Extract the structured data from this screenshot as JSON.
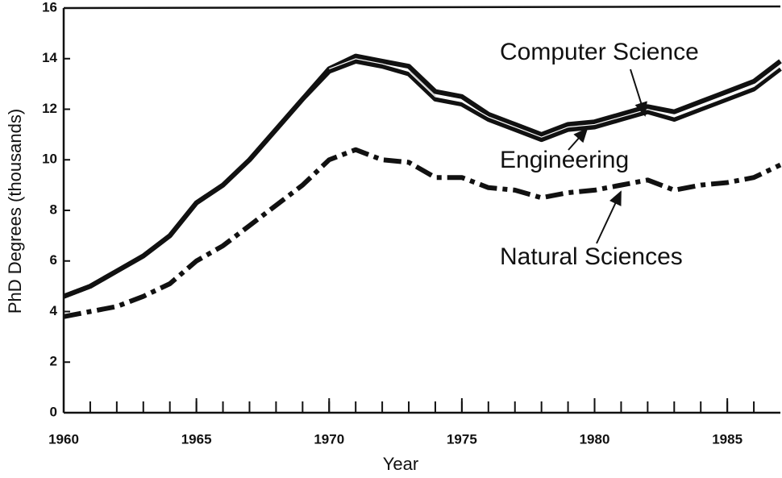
{
  "chart_data": {
    "type": "line",
    "x_label": "Year",
    "y_label": "PhD  Degrees (thousands)",
    "x": [
      1960,
      1961,
      1962,
      1963,
      1964,
      1965,
      1966,
      1967,
      1968,
      1969,
      1970,
      1971,
      1972,
      1973,
      1974,
      1975,
      1976,
      1977,
      1978,
      1979,
      1980,
      1981,
      1982,
      1983,
      1984,
      1985,
      1986,
      1987
    ],
    "series": [
      {
        "name": "Computer Science",
        "color": "#111111",
        "style": "solid",
        "values": [
          4.6,
          5.0,
          5.6,
          6.2,
          7.0,
          8.3,
          9.0,
          10.0,
          11.2,
          12.4,
          13.6,
          14.1,
          13.9,
          13.7,
          12.7,
          12.5,
          11.8,
          11.4,
          11.0,
          11.4,
          11.5,
          11.8,
          12.1,
          11.9,
          12.3,
          12.7,
          13.1,
          13.9
        ]
      },
      {
        "name": "Engineering",
        "color": "#111111",
        "style": "solid",
        "values": [
          4.6,
          5.0,
          5.6,
          6.2,
          7.0,
          8.3,
          9.0,
          10.0,
          11.2,
          12.4,
          13.5,
          13.9,
          13.7,
          13.4,
          12.4,
          12.2,
          11.6,
          11.2,
          10.8,
          11.2,
          11.3,
          11.6,
          11.9,
          11.6,
          12.0,
          12.4,
          12.8,
          13.6
        ]
      },
      {
        "name": "Natural Sciences",
        "color": "#111111",
        "style": "dashdot",
        "values": [
          3.8,
          4.0,
          4.2,
          4.6,
          5.1,
          6.0,
          6.6,
          7.4,
          8.2,
          9.0,
          10.0,
          10.4,
          10.0,
          9.9,
          9.3,
          9.3,
          8.9,
          8.8,
          8.5,
          8.7,
          8.8,
          9.0,
          9.2,
          8.8,
          9.0,
          9.1,
          9.3,
          9.8
        ]
      }
    ],
    "xlim": [
      1960,
      1987
    ],
    "ylim": [
      0,
      16
    ],
    "xticks": [
      1960,
      1965,
      1970,
      1975,
      1980,
      1985
    ],
    "yticks": [
      0,
      2,
      4,
      6,
      8,
      10,
      12,
      14,
      16
    ]
  }
}
